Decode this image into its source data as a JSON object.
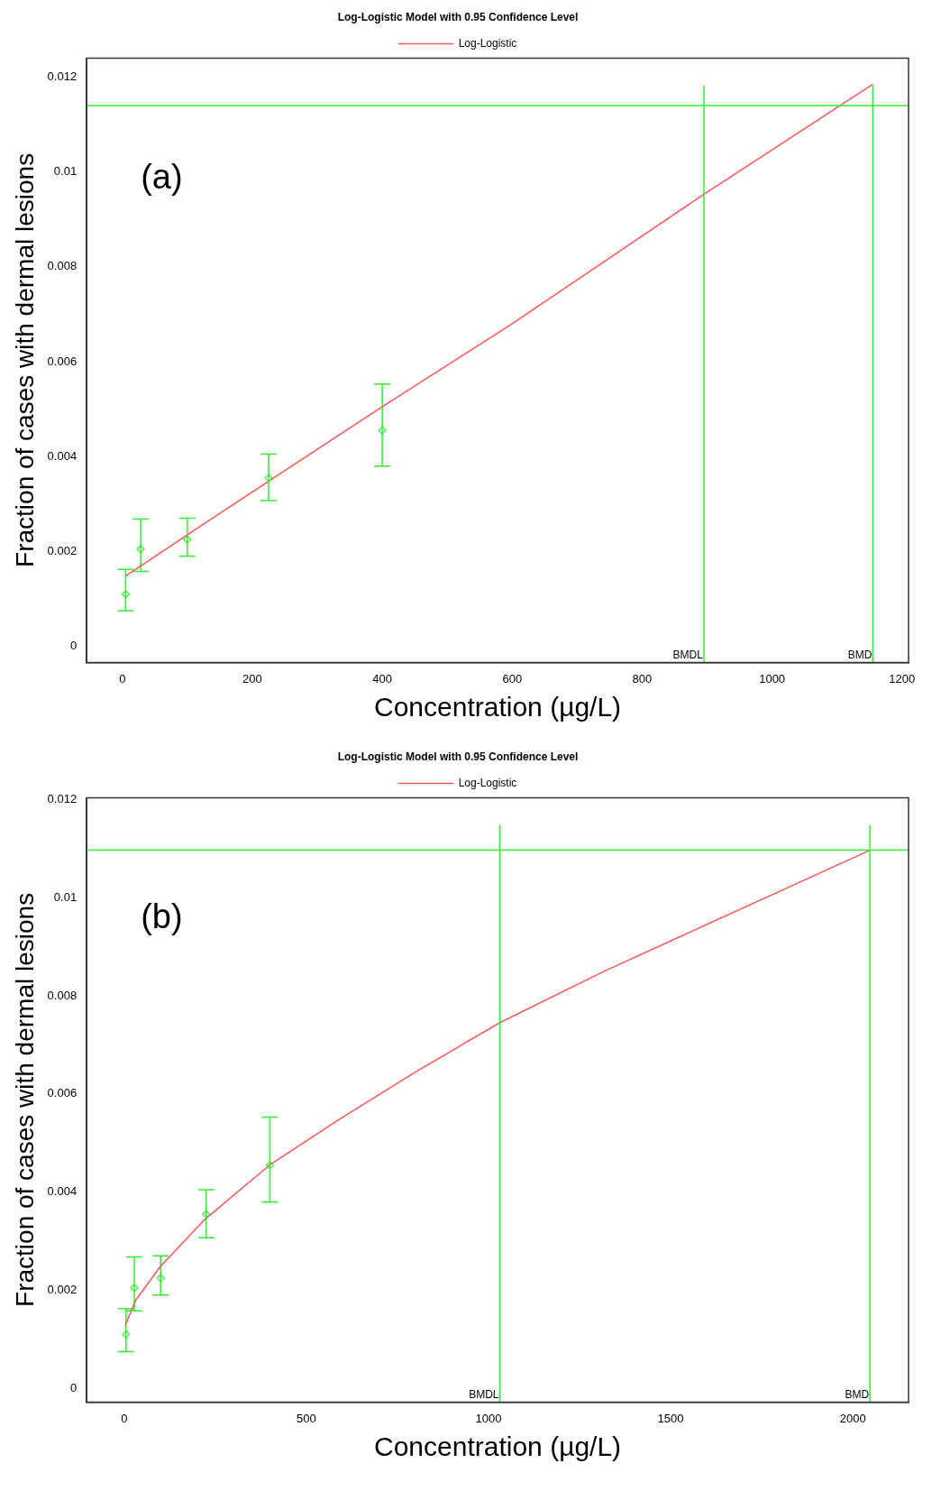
{
  "chart_data": [
    {
      "type": "line",
      "title": "Log-Logistic Model with 0.95 Confidence Level",
      "xlabel": "Concentration (µg/L)",
      "ylabel": "Fraction of cases with dermal lesions",
      "annotations": [
        "(a)"
      ],
      "xlim": [
        -55,
        1210
      ],
      "xticks": [
        0,
        200,
        400,
        600,
        800,
        1000,
        1200
      ],
      "ylim": [
        -0.00034,
        0.0124
      ],
      "yticks": [
        0,
        0.002,
        0.004,
        0.006,
        0.008,
        0.01,
        0.012
      ],
      "grid": false,
      "legend": "top",
      "series": [
        {
          "type": "scatter",
          "color": "#33ee33",
          "marker": "diamond",
          "x": [
            5,
            28,
            100,
            225,
            400
          ],
          "values": [
            0.0011,
            0.00205,
            0.00225,
            0.00355,
            0.00455
          ],
          "errors": [
            [
              0.00075,
              0.00162
            ],
            [
              0.00158,
              0.00268
            ],
            [
              0.0019,
              0.0027
            ],
            [
              0.00307,
              0.00405
            ],
            [
              0.0038,
              0.00553
            ]
          ]
        },
        {
          "type": "line",
          "name": "Log-Logistic",
          "color": "#ff5555",
          "marker": "none",
          "x": [
            5,
            100,
            225,
            400,
            600,
            895,
            1155
          ],
          "values": [
            0.00148,
            0.00235,
            0.00348,
            0.00505,
            0.0068,
            0.00953,
            0.01185
          ]
        }
      ],
      "ref_lines": [
        {
          "axis": "y",
          "value": 0.0114,
          "color": "#33ee33"
        },
        {
          "axis": "x",
          "value": 895,
          "label": "BMDL",
          "color": "#33ee33"
        },
        {
          "axis": "x",
          "value": 1155,
          "label": "BMD",
          "color": "#33ee33"
        }
      ]
    },
    {
      "type": "line",
      "title": "Log-Logistic Model with 0.95 Confidence Level",
      "xlabel": "Concentration (µg/L)",
      "ylabel": "Fraction of cases with dermal lesions",
      "annotations": [
        "(b)"
      ],
      "xlim": [
        -103,
        2153
      ],
      "xticks": [
        0,
        500,
        1000,
        1500,
        2000
      ],
      "ylim": [
        -0.00028,
        0.01204
      ],
      "yticks": [
        0,
        0.002,
        0.004,
        0.006,
        0.008,
        0.01,
        0.012
      ],
      "grid": false,
      "legend": "top",
      "series": [
        {
          "type": "scatter",
          "color": "#33ee33",
          "marker": "diamond",
          "x": [
            5,
            28,
            100,
            225,
            400
          ],
          "values": [
            0.0011,
            0.00205,
            0.00225,
            0.00355,
            0.00455
          ],
          "errors": [
            [
              0.00075,
              0.00162
            ],
            [
              0.00158,
              0.00268
            ],
            [
              0.0019,
              0.0027
            ],
            [
              0.00307,
              0.00405
            ],
            [
              0.0038,
              0.00553
            ]
          ]
        },
        {
          "type": "line",
          "name": "Log-Logistic",
          "color": "#ff5555",
          "marker": "none",
          "x": [
            3,
            32,
            99,
            221,
            399,
            579,
            800,
            1030,
            1317,
            1612,
            2047
          ],
          "values": [
            0.00128,
            0.0018,
            0.00248,
            0.00344,
            0.00455,
            0.00543,
            0.00645,
            0.00745,
            0.0085,
            0.0095,
            0.01097
          ]
        }
      ],
      "ref_lines": [
        {
          "axis": "y",
          "value": 0.01097,
          "color": "#33ee33"
        },
        {
          "axis": "x",
          "value": 1031,
          "label": "BMDL",
          "color": "#33ee33"
        },
        {
          "axis": "x",
          "value": 2047,
          "label": "BMD",
          "color": "#33ee33"
        }
      ]
    }
  ]
}
